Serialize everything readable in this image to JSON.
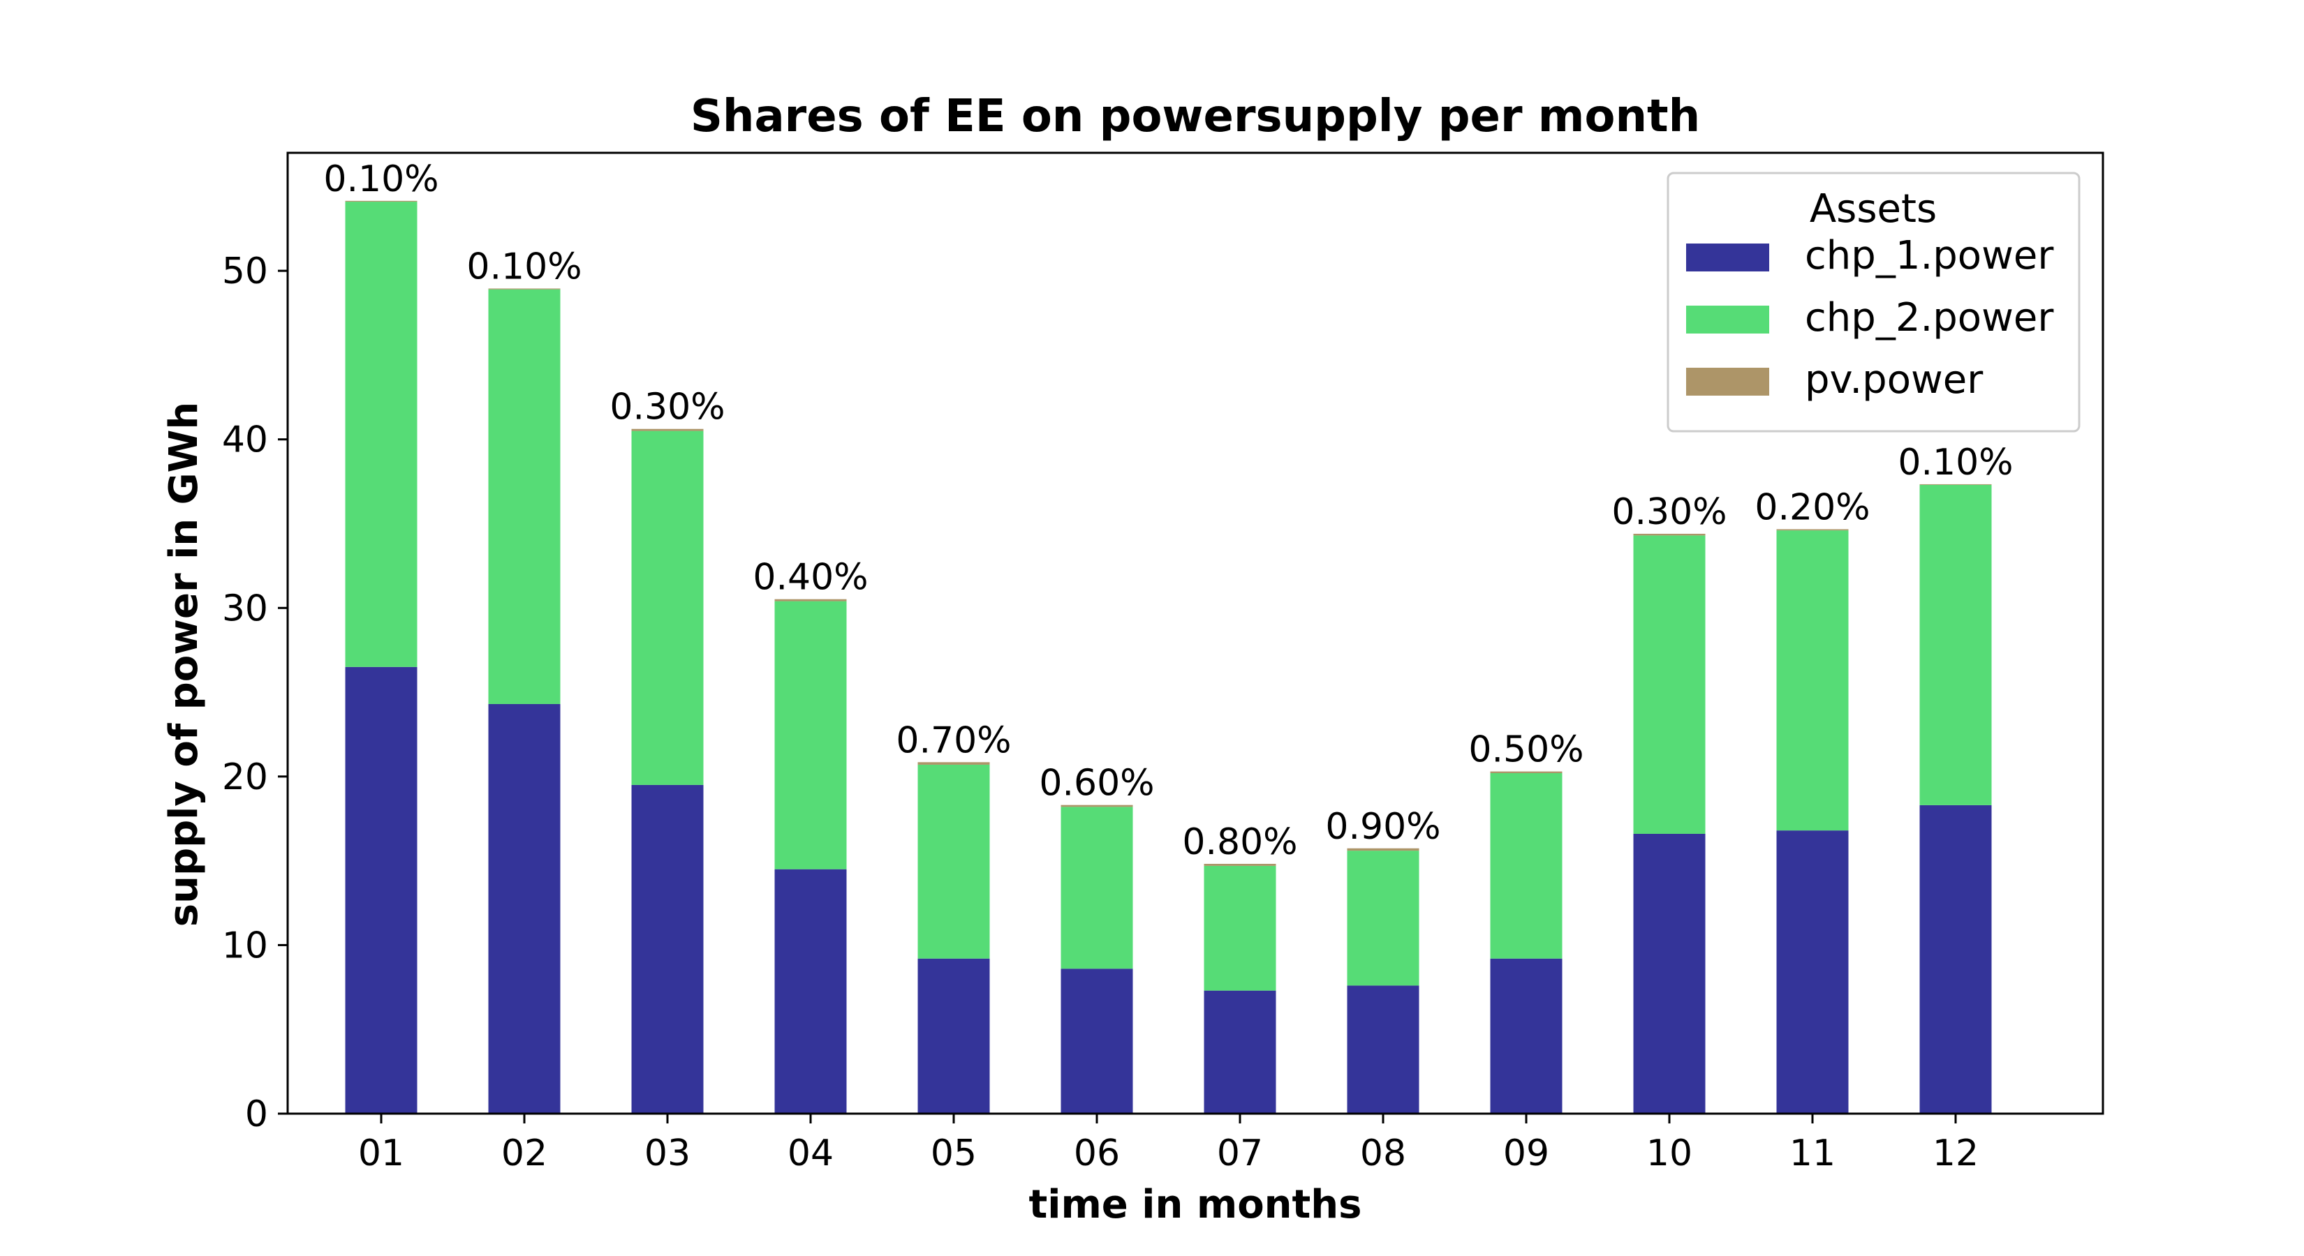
{
  "chart_data": {
    "type": "bar",
    "stacked": true,
    "title": "Shares of EE on powersupply per month",
    "xlabel": "time in months",
    "ylabel": "supply of power in GWh",
    "ylim": [
      0,
      57
    ],
    "yticks": [
      0,
      10,
      20,
      30,
      40,
      50
    ],
    "categories": [
      "01",
      "02",
      "03",
      "04",
      "05",
      "06",
      "07",
      "08",
      "09",
      "10",
      "11",
      "12"
    ],
    "series": [
      {
        "name": "chp_1.power",
        "color": "#343499",
        "values": [
          26.5,
          24.3,
          19.5,
          14.5,
          9.2,
          8.6,
          7.3,
          7.6,
          9.2,
          16.6,
          16.8,
          18.3
        ]
      },
      {
        "name": "chp_2.power",
        "color": "#56dc76",
        "values": [
          27.6,
          24.6,
          21.0,
          15.9,
          11.5,
          9.6,
          7.4,
          8.0,
          11.0,
          17.7,
          17.8,
          19.0
        ]
      },
      {
        "name": "pv.power",
        "color": "#ad9568",
        "values": [
          0.05,
          0.05,
          0.12,
          0.12,
          0.15,
          0.11,
          0.12,
          0.14,
          0.1,
          0.1,
          0.07,
          0.04
        ]
      }
    ],
    "annotations": [
      "0.10%",
      "0.10%",
      "0.30%",
      "0.40%",
      "0.70%",
      "0.60%",
      "0.80%",
      "0.90%",
      "0.50%",
      "0.30%",
      "0.20%",
      "0.10%"
    ],
    "legend": {
      "title": "Assets",
      "position": "top-right"
    },
    "grid": false
  }
}
